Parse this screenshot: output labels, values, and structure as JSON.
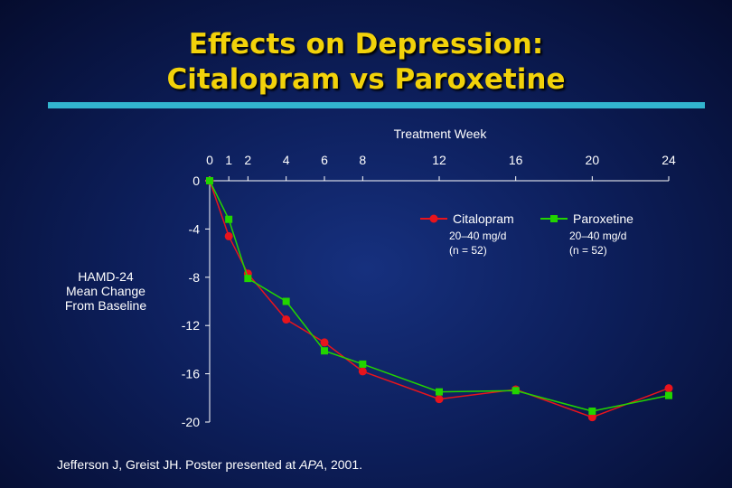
{
  "slide": {
    "title_line1": "Effects on Depression:",
    "title_line2": "Citalopram vs Paroxetine",
    "title_color": "#f2d20a",
    "rule_color": "#32b5cf",
    "citation_main": "Jefferson J, Greist JH. Poster presented at ",
    "citation_italic": "APA",
    "citation_end": ", 2001."
  },
  "chart_data": {
    "type": "line",
    "title": "",
    "xlabel": "Treatment Week",
    "ylabel_lines": [
      "HAMD-24",
      "Mean Change",
      "From Baseline"
    ],
    "x_ticks": [
      0,
      1,
      2,
      4,
      6,
      8,
      12,
      16,
      20,
      24
    ],
    "y_ticks": [
      0,
      -4,
      -8,
      -12,
      -16,
      -20
    ],
    "xlim": [
      0,
      24
    ],
    "ylim": [
      -20,
      0
    ],
    "x_axis_position": "top",
    "series": [
      {
        "name": "Citalopram",
        "dose": "20–40 mg/d",
        "n": "(n = 52)",
        "color": "#e8141c",
        "marker": "circle",
        "x": [
          0,
          1,
          2,
          4,
          6,
          8,
          12,
          16,
          20,
          24
        ],
        "values": [
          0,
          -4.6,
          -7.7,
          -11.5,
          -13.4,
          -15.8,
          -18.1,
          -17.3,
          -19.6,
          -17.2
        ]
      },
      {
        "name": "Paroxetine",
        "dose": "20–40 mg/d",
        "n": "(n = 52)",
        "color": "#22d400",
        "marker": "square",
        "x": [
          0,
          1,
          2,
          4,
          6,
          8,
          12,
          16,
          20,
          24
        ],
        "values": [
          0,
          -3.2,
          -8.1,
          -10.0,
          -14.1,
          -15.2,
          -17.5,
          -17.4,
          -19.1,
          -17.8
        ]
      }
    ]
  }
}
